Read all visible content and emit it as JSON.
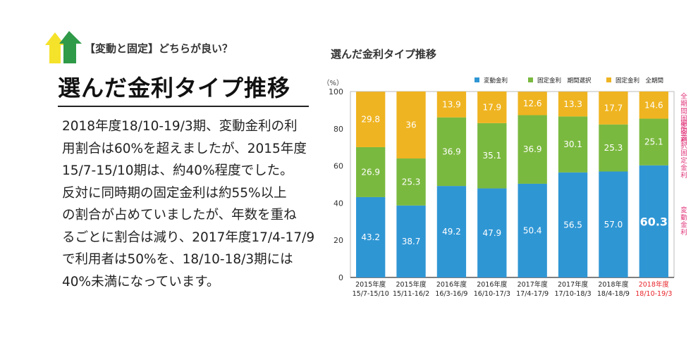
{
  "kicker": "【変動と固定】どちらが良い？",
  "headline": "選んだ金利タイプ推移",
  "body_lines": [
    "2018年度18/10-19/3期、変動金利の利",
    "用割合は60%を超えましたが、2015年度",
    "15/7-15/10期は、約40%程度でした。",
    "反対に同時期の固定金利は約55%以上",
    "の割合が占めていましたが、年数を重ね",
    "るごとに割合は減り、2017年度17/4-17/9",
    "で利用者は50%を、18/10-18/3期には",
    "40%未満になっています。"
  ],
  "colors": {
    "variable": "#2f96d4",
    "fixed_period": "#7ab93f",
    "fixed_full": "#efb421",
    "right_label": "#e0357a",
    "highlight": "#e8232a",
    "logo_yellow": "#f5e22a",
    "logo_green": "#2f9a48"
  },
  "chart_data": {
    "type": "bar",
    "stacked": true,
    "title": "選んだ金利タイプ推移",
    "ylabel": "（%）",
    "ylim": [
      0,
      100
    ],
    "yticks": [
      0,
      20,
      40,
      60,
      80,
      100
    ],
    "categories": [
      [
        "2015年度",
        "15/7-15/10"
      ],
      [
        "2015年度",
        "15/11-16/2"
      ],
      [
        "2016年度",
        "16/3-16/9"
      ],
      [
        "2016年度",
        "16/10-17/3"
      ],
      [
        "2017年度",
        "17/4-17/9"
      ],
      [
        "2017年度",
        "17/10-18/3"
      ],
      [
        "2018年度",
        "18/4-18/9"
      ],
      [
        "2018年度",
        "18/10-19/3"
      ]
    ],
    "highlight_index": 7,
    "series": [
      {
        "name": "変動金利",
        "key": "variable",
        "values": [
          43.2,
          38.7,
          49.2,
          47.9,
          50.4,
          56.5,
          57.0,
          60.3
        ],
        "labels": [
          "43.2",
          "38.7",
          "49.2",
          "47.9",
          "50.4",
          "56.5",
          "57.0",
          "60.3"
        ]
      },
      {
        "name": "固定金利　期間選択",
        "key": "fixed_period",
        "values": [
          26.9,
          25.3,
          36.9,
          35.1,
          36.9,
          30.1,
          25.3,
          25.1
        ],
        "labels": [
          "26.9",
          "25.3",
          "36.9",
          "35.1",
          "36.9",
          "30.1",
          "25.3",
          "25.1"
        ]
      },
      {
        "name": "固定金利　全期間",
        "key": "fixed_full",
        "values": [
          29.8,
          36,
          13.9,
          17.9,
          12.6,
          13.3,
          17.7,
          14.6
        ],
        "labels": [
          "29.8",
          "36",
          "13.9",
          "17.9",
          "12.6",
          "13.3",
          "17.7",
          "14.6"
        ]
      }
    ],
    "right_labels": [
      {
        "text": "全期間固定金利",
        "series": "fixed_full"
      },
      {
        "text": "期間選択固定金利",
        "series": "fixed_period"
      },
      {
        "text": "変動金利",
        "series": "variable"
      }
    ],
    "legend_position": "top-right",
    "grid": false
  }
}
